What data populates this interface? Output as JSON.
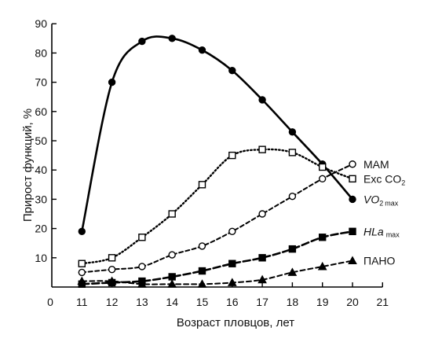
{
  "chart_data": {
    "type": "line",
    "xlabel": "Возраст пловцов, лет",
    "ylabel": "Прирост функций, %",
    "xlim": [
      11,
      21
    ],
    "ylim": [
      0,
      90
    ],
    "x_origin_label": "0",
    "xticks": [
      11,
      12,
      13,
      14,
      15,
      16,
      17,
      18,
      19,
      20,
      21
    ],
    "yticks": [
      10,
      20,
      30,
      40,
      50,
      60,
      70,
      80,
      90
    ],
    "grid": false,
    "legend_placement": "right",
    "series": [
      {
        "name": "VO2 max",
        "legend_main": "VO",
        "legend_sub_mid": "2",
        "legend_sub": "max",
        "marker": "filled-circle",
        "line": "solid",
        "color": "#000000",
        "x": [
          11,
          12,
          13,
          14,
          15,
          16,
          17,
          18,
          19,
          20
        ],
        "y": [
          19,
          70,
          84,
          85,
          81,
          74,
          64,
          53,
          42,
          30
        ]
      },
      {
        "name": "Exc CO2",
        "legend_main": "Exc CO",
        "legend_sub_mid": "2",
        "legend_sub": "",
        "marker": "open-square",
        "line": "dotted",
        "color": "#000000",
        "x": [
          11,
          12,
          13,
          14,
          15,
          16,
          17,
          18,
          19,
          20
        ],
        "y": [
          8,
          10,
          17,
          25,
          35,
          45,
          47,
          46,
          41,
          37
        ]
      },
      {
        "name": "MAM",
        "legend_main": "MAM",
        "legend_sub_mid": "",
        "legend_sub": "",
        "marker": "open-circle",
        "line": "dashed",
        "color": "#000000",
        "x": [
          11,
          12,
          13,
          14,
          15,
          16,
          17,
          18,
          19,
          20
        ],
        "y": [
          5,
          6,
          7,
          11,
          14,
          19,
          25,
          31,
          37,
          42
        ]
      },
      {
        "name": "HLa max",
        "legend_main": "HLa",
        "legend_sub_mid": "",
        "legend_sub": "max",
        "marker": "filled-square",
        "line": "long-dash",
        "color": "#000000",
        "x": [
          11,
          12,
          13,
          14,
          15,
          16,
          17,
          18,
          19,
          20
        ],
        "y": [
          1,
          1.5,
          2,
          3.5,
          5.5,
          8,
          10,
          13,
          17,
          19
        ]
      },
      {
        "name": "ПАНО",
        "legend_main": "ПАНО",
        "legend_sub_mid": "",
        "legend_sub": "",
        "marker": "filled-triangle",
        "line": "dash-dot",
        "color": "#000000",
        "x": [
          11,
          12,
          13,
          14,
          15,
          16,
          17,
          18,
          19,
          20
        ],
        "y": [
          2,
          2,
          1,
          1,
          1,
          1.5,
          2.5,
          5,
          7,
          9
        ]
      }
    ]
  }
}
